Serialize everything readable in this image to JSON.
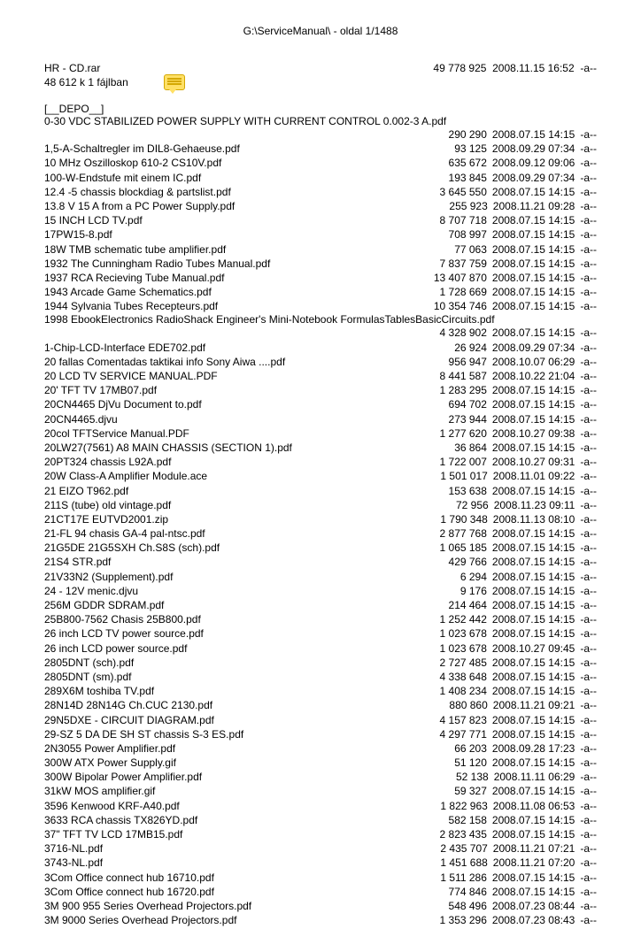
{
  "header": "G:\\ServiceManual\\ - oldal 1/1488",
  "archive": {
    "name": "HR - CD.rar",
    "size": "49 778 925",
    "date": "2008.11.15 16:52",
    "attr": "-a--",
    "subtitle": "48 612 k 1 fájlban"
  },
  "section": "[__DEPO__]",
  "long_entry": {
    "name": "0-30 VDC STABILIZED POWER SUPPLY WITH CURRENT CONTROL 0.002-3 A.pdf",
    "size": "290 290",
    "date": "2008.07.15 14:15",
    "attr": "-a--"
  },
  "wrap_entry": {
    "name": "1998 EbookElectronics RadioShack Engineer's Mini-Notebook FormulasTablesBasicCircuits.pdf",
    "size": "4 328 902",
    "date": "2008.07.15 14:15",
    "attr": "-a--"
  },
  "files1": [
    {
      "name": "1,5-A-Schaltregler im DIL8-Gehaeuse.pdf",
      "size": "93 125",
      "date": "2008.09.29 07:34",
      "attr": "-a--"
    },
    {
      "name": "10 MHz Oszilloskop 610-2 CS10V.pdf",
      "size": "635 672",
      "date": "2008.09.12 09:06",
      "attr": "-a--"
    },
    {
      "name": "100-W-Endstufe mit einem IC.pdf",
      "size": "193 845",
      "date": "2008.09.29 07:34",
      "attr": "-a--"
    },
    {
      "name": "12.4 -5 chassis blockdiag & partslist.pdf",
      "size": "3 645 550",
      "date": "2008.07.15 14:15",
      "attr": "-a--"
    },
    {
      "name": "13.8 V 15 A from a PC Power Supply.pdf",
      "size": "255 923",
      "date": "2008.11.21 09:28",
      "attr": "-a--"
    },
    {
      "name": "15 INCH LCD TV.pdf",
      "size": "8 707 718",
      "date": "2008.07.15 14:15",
      "attr": "-a--"
    },
    {
      "name": "17PW15-8.pdf",
      "size": "708 997",
      "date": "2008.07.15 14:15",
      "attr": "-a--"
    },
    {
      "name": "18W TMB schematic tube amplifier.pdf",
      "size": "77 063",
      "date": "2008.07.15 14:15",
      "attr": "-a--"
    },
    {
      "name": "1932 The Cunningham Radio Tubes Manual.pdf",
      "size": "7 837 759",
      "date": "2008.07.15 14:15",
      "attr": "-a--"
    },
    {
      "name": "1937 RCA Recieving Tube Manual.pdf",
      "size": "13 407 870",
      "date": "2008.07.15 14:15",
      "attr": "-a--"
    },
    {
      "name": "1943 Arcade Game Schematics.pdf",
      "size": "1 728 669",
      "date": "2008.07.15 14:15",
      "attr": "-a--"
    },
    {
      "name": "1944 Sylvania Tubes Recepteurs.pdf",
      "size": "10 354 746",
      "date": "2008.07.15 14:15",
      "attr": "-a--"
    }
  ],
  "files2": [
    {
      "name": "1-Chip-LCD-Interface EDE702.pdf",
      "size": "26 924",
      "date": "2008.09.29 07:34",
      "attr": "-a--"
    },
    {
      "name": "20 fallas Comentadas taktikai info Sony Aiwa ....pdf",
      "size": "956 947",
      "date": "2008.10.07 06:29",
      "attr": "-a--"
    },
    {
      "name": "20 LCD TV SERVICE MANUAL.PDF",
      "size": "8 441 587",
      "date": "2008.10.22 21:04",
      "attr": "-a--"
    },
    {
      "name": "20' TFT TV 17MB07.pdf",
      "size": "1 283 295",
      "date": "2008.07.15 14:15",
      "attr": "-a--"
    },
    {
      "name": "20CN4465 DjVu Document to.pdf",
      "size": "694 702",
      "date": "2008.07.15 14:15",
      "attr": "-a--"
    },
    {
      "name": "20CN4465.djvu",
      "size": "273 944",
      "date": "2008.07.15 14:15",
      "attr": "-a--"
    },
    {
      "name": "20col TFTService Manual.PDF",
      "size": "1 277 620",
      "date": "2008.10.27 09:38",
      "attr": "-a--"
    },
    {
      "name": "20LW27(7561) A8 MAIN CHASSIS (SECTION 1).pdf",
      "size": "36 864",
      "date": "2008.07.15 14:15",
      "attr": "-a--"
    },
    {
      "name": "20PT324 chassis L92A.pdf",
      "size": "1 722 007",
      "date": "2008.10.27 09:31",
      "attr": "-a--"
    },
    {
      "name": "20W Class-A Amplifier Module.ace",
      "size": "1 501 017",
      "date": "2008.11.01 09:22",
      "attr": "-a--"
    },
    {
      "name": "21 EIZO T962.pdf",
      "size": "153 638",
      "date": "2008.07.15 14:15",
      "attr": "-a--"
    },
    {
      "name": "211S  (tube) old vintage.pdf",
      "size": "72 956",
      "date": "2008.11.23 09:11",
      "attr": "-a--"
    },
    {
      "name": "21CT17E EUTVD2001.zip",
      "size": "1 790 348",
      "date": "2008.11.13 08:10",
      "attr": "-a--"
    },
    {
      "name": "21-FL 94      chasis GA-4 pal-ntsc.pdf",
      "size": "2 877 768",
      "date": "2008.07.15 14:15",
      "attr": "-a--"
    },
    {
      "name": "21G5DE 21G5SXH Ch.S8S (sch).pdf",
      "size": "1 065 185",
      "date": "2008.07.15 14:15",
      "attr": "-a--"
    },
    {
      "name": "21S4 STR.pdf",
      "size": "429 766",
      "date": "2008.07.15 14:15",
      "attr": "-a--"
    },
    {
      "name": "21V33N2 (Supplement).pdf",
      "size": "6 294",
      "date": "2008.07.15 14:15",
      "attr": "-a--"
    },
    {
      "name": "24 - 12V menic.djvu",
      "size": "9 176",
      "date": "2008.07.15 14:15",
      "attr": "-a--"
    },
    {
      "name": "256M GDDR SDRAM.pdf",
      "size": "214 464",
      "date": "2008.07.15 14:15",
      "attr": "-a--"
    },
    {
      "name": "25B800-7562 Chasis 25B800.pdf",
      "size": "1 252 442",
      "date": "2008.07.15 14:15",
      "attr": "-a--"
    },
    {
      "name": "26 inch  LCD TV power source.pdf",
      "size": "1 023 678",
      "date": "2008.07.15 14:15",
      "attr": "-a--"
    },
    {
      "name": "26 inch LCD    power source.pdf",
      "size": "1 023 678",
      "date": "2008.10.27 09:45",
      "attr": "-a--"
    },
    {
      "name": "2805DNT (sch).pdf",
      "size": "2 727 485",
      "date": "2008.07.15 14:15",
      "attr": "-a--"
    },
    {
      "name": "2805DNT (sm).pdf",
      "size": "4 338 648",
      "date": "2008.07.15 14:15",
      "attr": "-a--"
    },
    {
      "name": "289X6M toshiba TV.pdf",
      "size": "1 408 234",
      "date": "2008.07.15 14:15",
      "attr": "-a--"
    },
    {
      "name": "28N14D 28N14G Ch.CUC 2130.pdf",
      "size": "880 860",
      "date": "2008.11.21 09:21",
      "attr": "-a--"
    },
    {
      "name": "29N5DXE - CIRCUIT DIAGRAM.pdf",
      "size": "4 157 823",
      "date": "2008.07.15 14:15",
      "attr": "-a--"
    },
    {
      "name": "29-SZ 5 DA DE SH ST chassis S-3 ES.pdf",
      "size": "4 297 771",
      "date": "2008.07.15 14:15",
      "attr": "-a--"
    },
    {
      "name": "2N3055 Power Amplifier.pdf",
      "size": "66 203",
      "date": "2008.09.28 17:23",
      "attr": "-a--"
    },
    {
      "name": "300W ATX Power Supply.gif",
      "size": "51 120",
      "date": "2008.07.15 14:15",
      "attr": "-a--"
    },
    {
      "name": "300W Bipolar Power Amplifier.pdf",
      "size": "52 138",
      "date": "2008.11.11 06:29",
      "attr": "-a--"
    },
    {
      "name": "31kW MOS amplifier.gif",
      "size": "59 327",
      "date": "2008.07.15 14:15",
      "attr": "-a--"
    },
    {
      "name": "3596 Kenwood KRF-A40.pdf",
      "size": "1 822 963",
      "date": "2008.11.08 06:53",
      "attr": "-a--"
    },
    {
      "name": "3633 RCA chassis TX826YD.pdf",
      "size": "582 158",
      "date": "2008.07.15 14:15",
      "attr": "-a--"
    },
    {
      "name": "37\" TFT TV LCD 17MB15.pdf",
      "size": "2 823 435",
      "date": "2008.07.15 14:15",
      "attr": "-a--"
    },
    {
      "name": "3716-NL.pdf",
      "size": "2 435 707",
      "date": "2008.11.21 07:21",
      "attr": "-a--"
    },
    {
      "name": "3743-NL.pdf",
      "size": "1 451 688",
      "date": "2008.11.21 07:20",
      "attr": "-a--"
    },
    {
      "name": "3Com Office connect hub 16710.pdf",
      "size": "1 511 286",
      "date": "2008.07.15 14:15",
      "attr": "-a--"
    },
    {
      "name": "3Com Office connect hub 16720.pdf",
      "size": "774 846",
      "date": "2008.07.15 14:15",
      "attr": "-a--"
    },
    {
      "name": "3M 900 955 Series Overhead Projectors.pdf",
      "size": "548 496",
      "date": "2008.07.23 08:44",
      "attr": "-a--"
    },
    {
      "name": "3M 9000 Series Overhead Projectors.pdf",
      "size": "1 353 296",
      "date": "2008.07.23 08:43",
      "attr": "-a--"
    }
  ]
}
